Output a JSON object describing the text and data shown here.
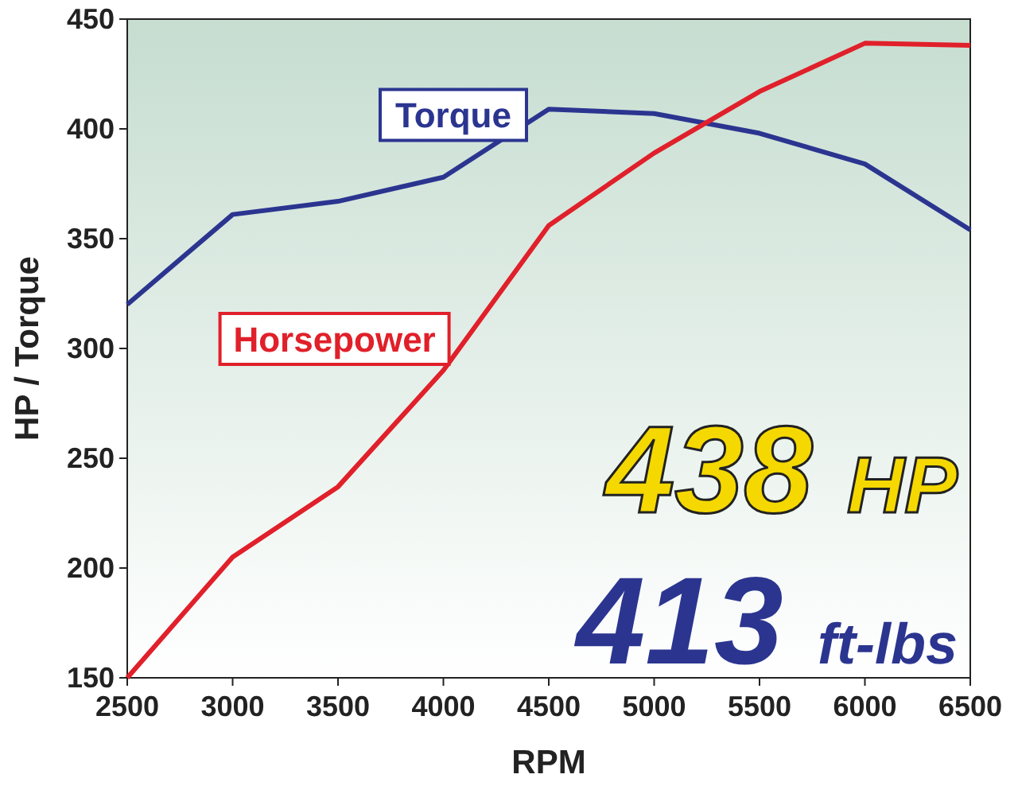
{
  "chart_data": {
    "type": "line",
    "xlabel": "RPM",
    "ylabel": "HP / Torque",
    "x": [
      2500,
      3000,
      3500,
      4000,
      4500,
      5000,
      5500,
      6000,
      6500
    ],
    "series": [
      {
        "name": "Torque",
        "color": "#2b3590",
        "values": [
          320,
          361,
          367,
          378,
          409,
          407,
          398,
          384,
          354
        ]
      },
      {
        "name": "Horsepower",
        "color": "#e0202a",
        "values": [
          150,
          205,
          237,
          290,
          356,
          389,
          417,
          439,
          438
        ]
      }
    ],
    "xlim": [
      2500,
      6500
    ],
    "xticks": [
      2500,
      3000,
      3500,
      4000,
      4500,
      5000,
      5500,
      6000,
      6500
    ],
    "ylim": [
      150,
      450
    ],
    "yticks": [
      150,
      200,
      250,
      300,
      350,
      400,
      450
    ],
    "grid": false,
    "legend": false,
    "line_style": "solid",
    "annotations": [
      "438 HP",
      "413 ft-lbs"
    ]
  }
}
